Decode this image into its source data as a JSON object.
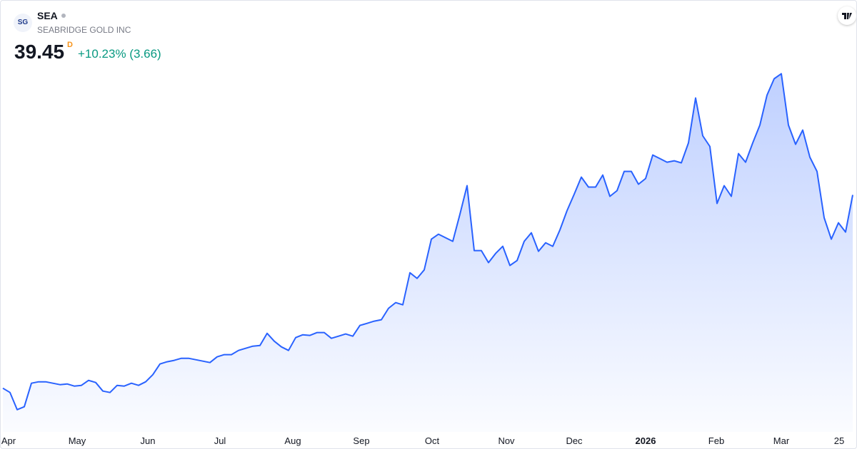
{
  "header": {
    "logo": "SG",
    "symbol": "SEA",
    "name": "SEABRIDGE GOLD INC",
    "price": "39.45",
    "interval": "D",
    "change": "+10.23% (3.66)"
  },
  "chart_data": {
    "type": "area",
    "color": "#2962ff",
    "xlim": [
      0,
      119
    ],
    "xticks": [
      {
        "value": 0.8,
        "label": "Apr"
      },
      {
        "value": 10.4,
        "label": "May"
      },
      {
        "value": 20.3,
        "label": "Jun"
      },
      {
        "value": 30.4,
        "label": "Jul"
      },
      {
        "value": 40.6,
        "label": "Aug"
      },
      {
        "value": 50.2,
        "label": "Sep"
      },
      {
        "value": 60.1,
        "label": "Oct"
      },
      {
        "value": 70.5,
        "label": "Nov"
      },
      {
        "value": 80,
        "label": "Dec"
      },
      {
        "value": 90,
        "label": "2026"
      },
      {
        "value": 99.9,
        "label": "Feb"
      },
      {
        "value": 109,
        "label": "Mar"
      },
      {
        "value": 117.1,
        "label": "25"
      }
    ],
    "ylim": [
      11.6,
      55.4
    ],
    "values": [
      16.39,
      15.88,
      13.83,
      14.18,
      16.98,
      17.15,
      17.15,
      16.98,
      16.81,
      16.9,
      16.64,
      16.73,
      17.32,
      17.07,
      16.05,
      15.88,
      16.73,
      16.64,
      16.98,
      16.73,
      17.15,
      18.0,
      19.28,
      19.54,
      19.71,
      19.96,
      19.96,
      19.79,
      19.62,
      19.45,
      20.13,
      20.39,
      20.39,
      20.9,
      21.15,
      21.41,
      21.49,
      22.94,
      22.0,
      21.32,
      20.9,
      22.43,
      22.77,
      22.69,
      23.03,
      23.03,
      22.34,
      22.6,
      22.86,
      22.6,
      23.88,
      24.13,
      24.39,
      24.56,
      25.92,
      26.6,
      26.34,
      30.17,
      29.49,
      30.51,
      34.17,
      34.77,
      34.34,
      33.92,
      37.15,
      40.56,
      32.81,
      32.81,
      31.37,
      32.47,
      33.32,
      31.03,
      31.62,
      33.92,
      34.94,
      32.73,
      33.75,
      33.32,
      35.28,
      37.58,
      39.54,
      41.58,
      40.39,
      40.39,
      41.83,
      39.28,
      39.96,
      42.26,
      42.26,
      40.73,
      41.41,
      44.22,
      43.79,
      43.36,
      43.53,
      43.28,
      45.66,
      51.02,
      46.51,
      45.24,
      38.43,
      40.56,
      39.28,
      44.39,
      43.36,
      45.66,
      47.79,
      51.36,
      53.32,
      53.92,
      47.79,
      45.49,
      47.19,
      43.96,
      42.26,
      36.73,
      34.17,
      36.13,
      35.02,
      39.45
    ]
  }
}
